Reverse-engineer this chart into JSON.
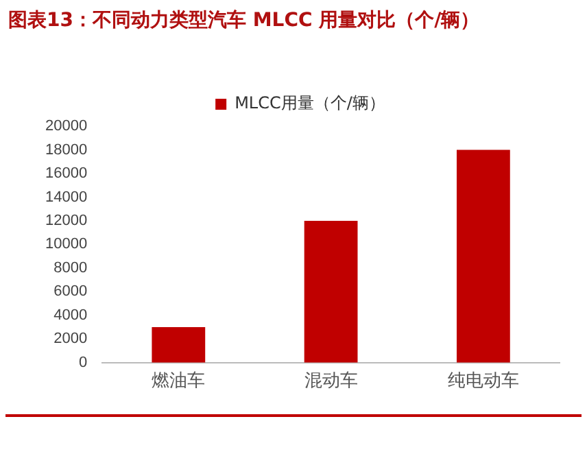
{
  "chart_data": {
    "type": "bar",
    "title": "图表13：不同动力类型汽车 MLCC 用量对比（个/辆）",
    "categories": [
      "燃油车",
      "混动车",
      "纯电动车"
    ],
    "series": [
      {
        "name": "MLCC用量（个/辆）",
        "color": "#c00000",
        "values": [
          3000,
          12000,
          18000
        ]
      }
    ],
    "ylim": [
      0,
      20000
    ],
    "yticks": [
      0,
      2000,
      4000,
      6000,
      8000,
      10000,
      12000,
      14000,
      16000,
      18000,
      20000
    ],
    "grid": false,
    "legend": "top"
  }
}
